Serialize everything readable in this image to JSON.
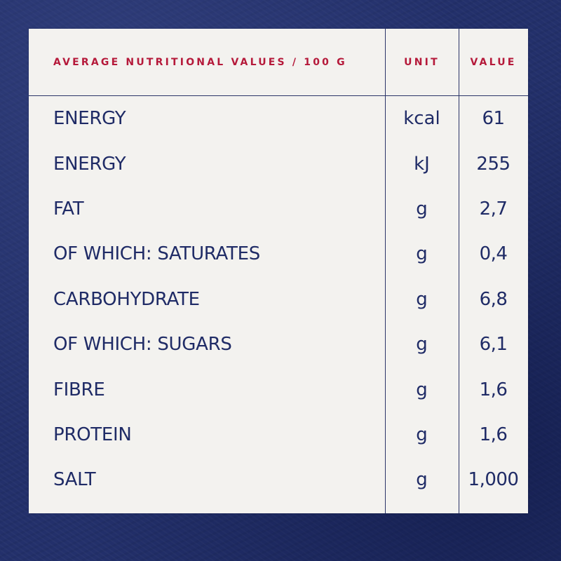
{
  "table": {
    "headers": {
      "nutrient": "AVERAGE  NUTRITIONAL VALUES / 100 G",
      "unit": "UNIT",
      "value": "VALUE"
    },
    "rows": [
      {
        "nutrient": "ENERGY",
        "unit": "kcal",
        "value": "61"
      },
      {
        "nutrient": "ENERGY",
        "unit": "kJ",
        "value": "255"
      },
      {
        "nutrient": "FAT",
        "unit": "g",
        "value": "2,7"
      },
      {
        "nutrient": "OF WHICH: SATURATES",
        "unit": "g",
        "value": "0,4"
      },
      {
        "nutrient": "CARBOHYDRATE",
        "unit": "g",
        "value": "6,8"
      },
      {
        "nutrient": "OF WHICH: SUGARS",
        "unit": "g",
        "value": "6,1"
      },
      {
        "nutrient": "FIBRE",
        "unit": "g",
        "value": "1,6"
      },
      {
        "nutrient": "PROTEIN",
        "unit": "g",
        "value": "1,6"
      },
      {
        "nutrient": "SALT",
        "unit": "g",
        "value": "1,000"
      }
    ]
  },
  "colors": {
    "background": "#23306b",
    "panel": "#f3f2ef",
    "header_text": "#b5193a",
    "body_text": "#1f2b66"
  }
}
